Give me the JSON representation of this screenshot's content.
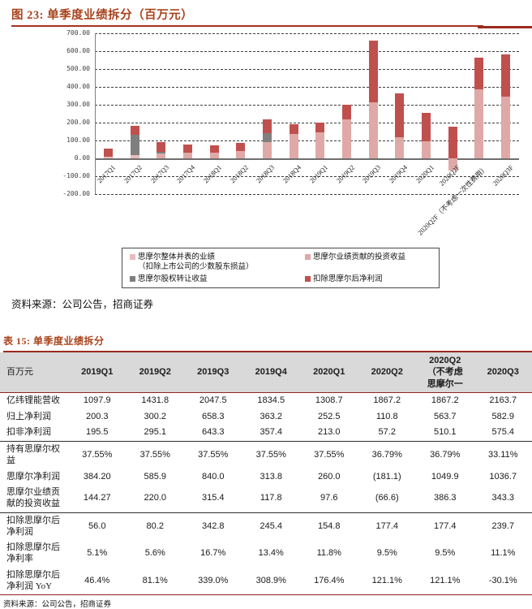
{
  "colors": {
    "heading": "#a8431c",
    "rule": "#a93122",
    "table_rule": "#8e2420",
    "header_bg": "#d9d9d9",
    "series_consolidated": "#e7bcbb",
    "series_investment": "#dfa9a7",
    "series_transfer": "#7f7f7f",
    "series_ex_smoore": "#c0504d"
  },
  "figure": {
    "title": "图 23: 单季度业绩拆分（百万元）",
    "source": "资料来源：公司公告，招商证券"
  },
  "chart_data": {
    "type": "bar",
    "stacked": true,
    "title": "单季度业绩拆分（百万元）",
    "xlabel": "",
    "ylabel": "",
    "ylim": [
      -200,
      700
    ],
    "ytick_interval": 100,
    "yticks": [
      "700.00",
      "600.00",
      "500.00",
      "400.00",
      "300.00",
      "200.00",
      "100.00",
      "0.00",
      "-100.00",
      "-200.00"
    ],
    "grid": "horizontal-dashed",
    "legend_position": "bottom-boxed",
    "categories": [
      "2017Q1",
      "2017Q2",
      "2017Q3",
      "2017Q4",
      "2018Q1",
      "2018Q2",
      "2018Q3",
      "2018Q4",
      "2019Q1",
      "2019Q2",
      "2019Q3",
      "2019Q4",
      "2020Q1",
      "2020Q2F",
      "2020Q2F（不考虑一次性费用）",
      "2020Q3F"
    ],
    "series": [
      {
        "name": "思摩尔整体并表的业绩（扣除上市公司的少数股东损益）",
        "color": "#e7bcbb",
        "values": [
          10,
          20,
          0,
          0,
          0,
          0,
          0,
          0,
          0,
          0,
          0,
          0,
          0,
          0,
          0,
          0
        ]
      },
      {
        "name": "思摩尔业绩贡献的投资收益",
        "color": "#dfa9a7",
        "values": [
          0,
          0,
          28,
          30,
          33,
          40,
          92,
          135,
          144.3,
          220.0,
          315.4,
          117.8,
          97.6,
          -66.6,
          386.3,
          343.3
        ]
      },
      {
        "name": "思摩尔股权转让收益",
        "color": "#7f7f7f",
        "values": [
          0,
          110,
          8,
          0,
          0,
          0,
          48,
          0,
          0,
          0,
          0,
          0,
          0,
          0,
          0,
          0
        ]
      },
      {
        "name": "扣除思摩尔后净利润",
        "color": "#c0504d",
        "values": [
          45,
          50,
          54,
          48,
          40,
          45,
          78,
          55,
          56.0,
          80.2,
          342.8,
          245.4,
          154.8,
          177.4,
          177.4,
          239.7
        ]
      }
    ],
    "legend": [
      {
        "label": "思摩尔整体并表的业绩\n（扣除上市公司的少数股东损益）",
        "color": "#e7bcbb"
      },
      {
        "label": "思摩尔业绩贡献的投资收益",
        "color": "#dfa9a7"
      },
      {
        "label": "思摩尔股权转让收益",
        "color": "#7f7f7f"
      },
      {
        "label": "扣除思摩尔后净利润",
        "color": "#c0504d"
      }
    ]
  },
  "table": {
    "title": "表 15: 单季度业绩拆分",
    "unit_header": "百万元",
    "columns": [
      "2019Q1",
      "2019Q2",
      "2019Q3",
      "2019Q4",
      "2020Q1",
      "2020Q2",
      "2020Q2\n（不考虑\n思摩尔一",
      "2020Q3"
    ],
    "rows": [
      {
        "label": "亿纬锂能营收",
        "rule_above": false,
        "values": [
          "1097.9",
          "1431.8",
          "2047.5",
          "1834.5",
          "1308.7",
          "1867.2",
          "1867.2",
          "2163.7"
        ]
      },
      {
        "label": "归上净利润",
        "rule_above": false,
        "values": [
          "200.3",
          "300.2",
          "658.3",
          "363.2",
          "252.5",
          "110.8",
          "563.7",
          "582.9"
        ]
      },
      {
        "label": "扣非净利润",
        "rule_above": false,
        "values": [
          "195.5",
          "295.1",
          "643.3",
          "357.4",
          "213.0",
          "57.2",
          "510.1",
          "575.4"
        ]
      },
      {
        "label": "持有思摩尔权益",
        "rule_above": true,
        "values": [
          "37.55%",
          "37.55%",
          "37.55%",
          "37.55%",
          "37.55%",
          "36.79%",
          "36.79%",
          "33.11%"
        ]
      },
      {
        "label": "思摩尔净利润",
        "rule_above": false,
        "values": [
          "384.20",
          "585.9",
          "840.0",
          "313.8",
          "260.0",
          "(181.1)",
          "1049.9",
          "1036.7"
        ]
      },
      {
        "label": "思摩尔业绩贡献的投资收益",
        "rule_above": false,
        "values": [
          "144.27",
          "220.0",
          "315.4",
          "117.8",
          "97.6",
          "(66.6)",
          "386.3",
          "343.3"
        ]
      },
      {
        "label": "扣除思摩尔后净利润",
        "rule_above": true,
        "values": [
          "56.0",
          "80.2",
          "342.8",
          "245.4",
          "154.8",
          "177.4",
          "177.4",
          "239.7"
        ]
      },
      {
        "label": "扣除思摩尔后净利率",
        "rule_above": false,
        "values": [
          "5.1%",
          "5.6%",
          "16.7%",
          "13.4%",
          "11.8%",
          "9.5%",
          "9.5%",
          "11.1%"
        ]
      },
      {
        "label": "扣除思摩尔后净利润 YoY",
        "rule_above": false,
        "values": [
          "46.4%",
          "81.1%",
          "339.0%",
          "308.9%",
          "176.4%",
          "121.1%",
          "121.1%",
          "-30.1%"
        ]
      }
    ],
    "source": "资料来源：公司公告，招商证券"
  }
}
